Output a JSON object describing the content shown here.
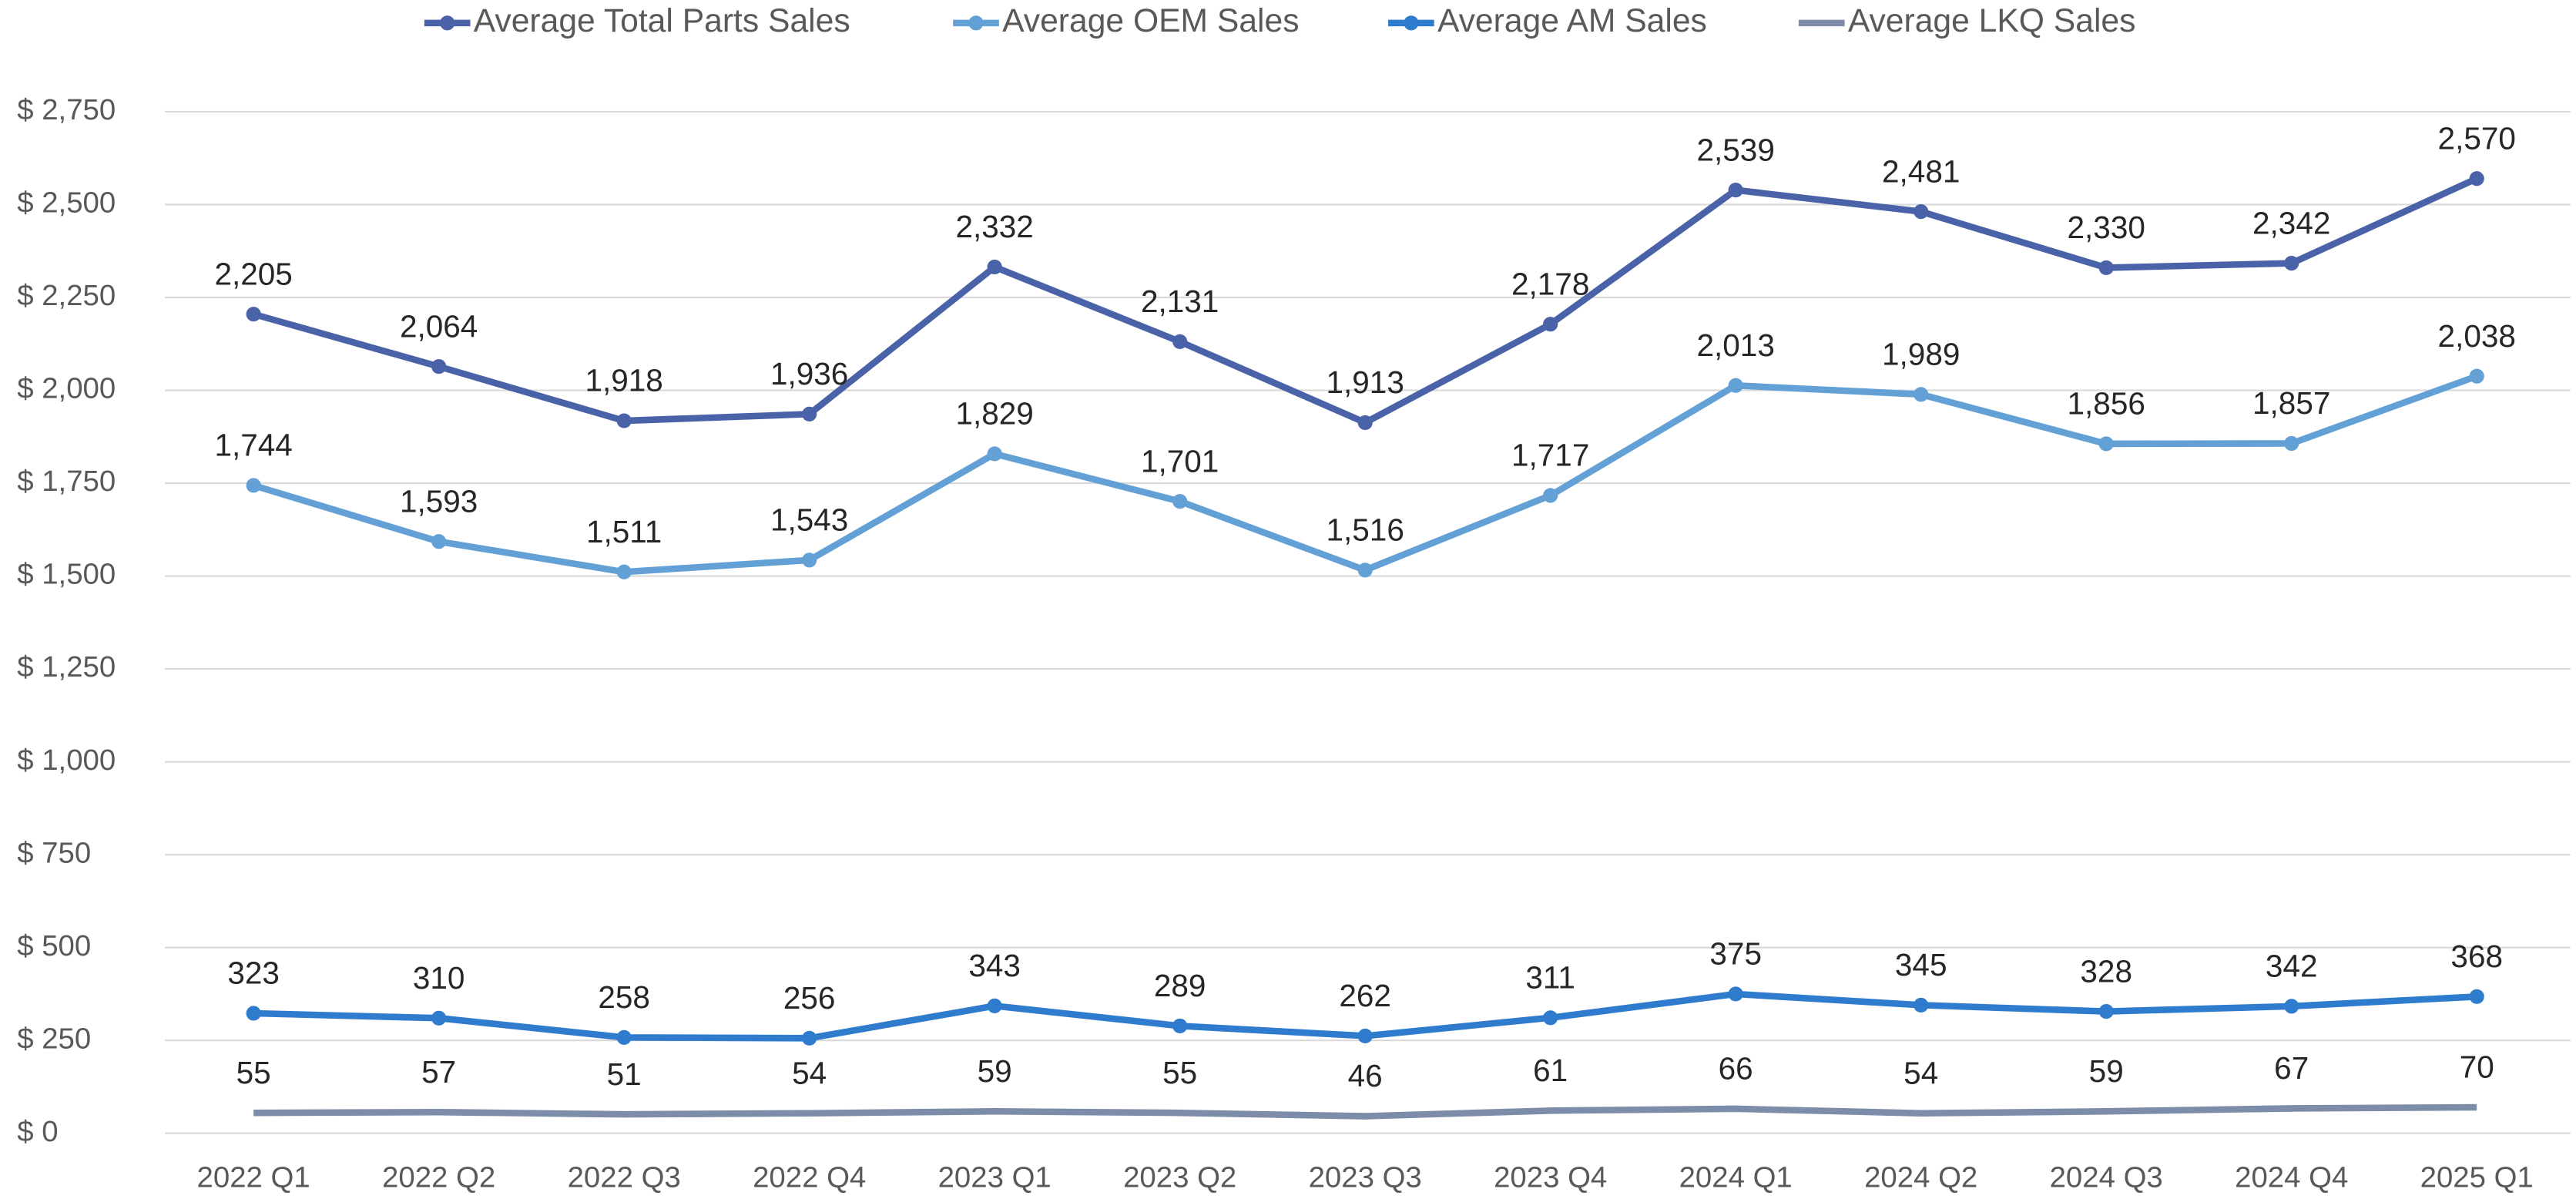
{
  "chart_data": {
    "type": "line",
    "categories": [
      "2022 Q1",
      "2022 Q2",
      "2022 Q3",
      "2022 Q4",
      "2023 Q1",
      "2023 Q2",
      "2023 Q3",
      "2023 Q4",
      "2024 Q1",
      "2024 Q2",
      "2024 Q3",
      "2024 Q4",
      "2025 Q1"
    ],
    "series": [
      {
        "name": "Average Total Parts Sales",
        "color": "#4a62a8",
        "markers": true,
        "values": [
          2205,
          2064,
          1918,
          1936,
          2332,
          2131,
          1913,
          2178,
          2539,
          2481,
          2330,
          2342,
          2570
        ],
        "value_labels": [
          "2,205",
          "2,064",
          "1,918",
          "1,936",
          "2,332",
          "2,131",
          "1,913",
          "2,178",
          "2,539",
          "2,481",
          "2,330",
          "2,342",
          "2,570"
        ]
      },
      {
        "name": "Average OEM Sales",
        "color": "#63a0d6",
        "markers": true,
        "values": [
          1744,
          1593,
          1511,
          1543,
          1829,
          1701,
          1516,
          1717,
          2013,
          1989,
          1856,
          1857,
          2038
        ],
        "value_labels": [
          "1,744",
          "1,593",
          "1,511",
          "1,543",
          "1,829",
          "1,701",
          "1,516",
          "1,717",
          "2,013",
          "1,989",
          "1,856",
          "1,857",
          "2,038"
        ]
      },
      {
        "name": "Average AM Sales",
        "color": "#2f7bcd",
        "markers": true,
        "values": [
          323,
          310,
          258,
          256,
          343,
          289,
          262,
          311,
          375,
          345,
          328,
          342,
          368
        ]
      },
      {
        "name": "Average LKQ Sales",
        "color": "#7d8ca8",
        "markers": false,
        "values": [
          55,
          57,
          51,
          54,
          59,
          55,
          46,
          61,
          66,
          54,
          59,
          67,
          70
        ]
      }
    ],
    "ylim": [
      0,
      2750
    ],
    "yticks": [
      {
        "value": 0,
        "label": "$ 0"
      },
      {
        "value": 250,
        "label": "$ 250"
      },
      {
        "value": 500,
        "label": "$ 500"
      },
      {
        "value": 750,
        "label": "$ 750"
      },
      {
        "value": 1000,
        "label": "$ 1,000"
      },
      {
        "value": 1250,
        "label": "$ 1,250"
      },
      {
        "value": 1500,
        "label": "$ 1,500"
      },
      {
        "value": 1750,
        "label": "$ 1,750"
      },
      {
        "value": 2000,
        "label": "$ 2,000"
      },
      {
        "value": 2250,
        "label": "$ 2,250"
      },
      {
        "value": 2500,
        "label": "$ 2,500"
      },
      {
        "value": 2750,
        "label": "$ 2,750"
      }
    ],
    "grid": true,
    "legend": "top"
  }
}
